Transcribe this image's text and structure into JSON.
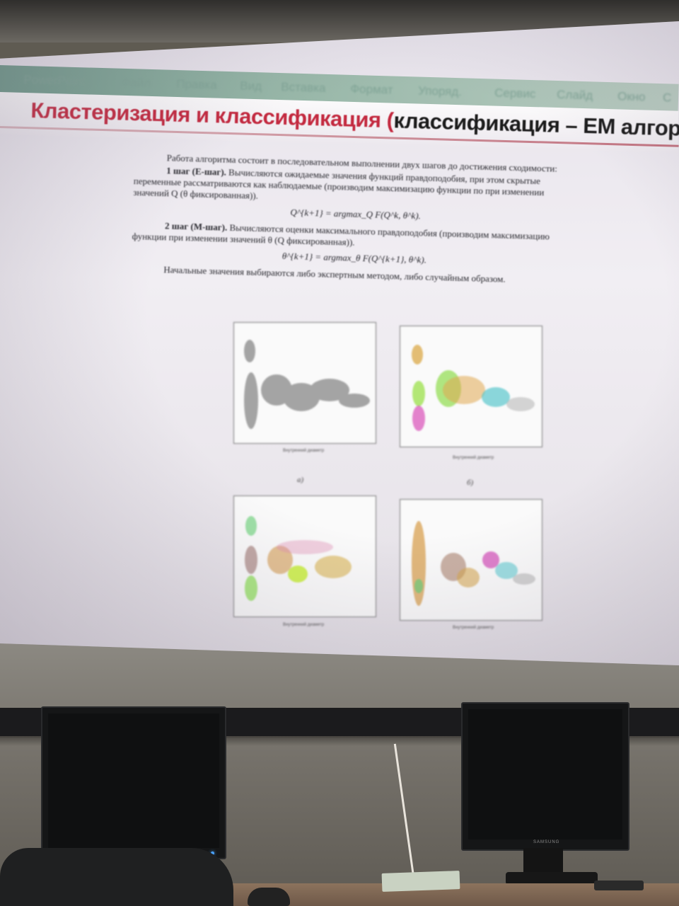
{
  "menubar": {
    "items": [
      "PowerPoint",
      "Файл",
      "Правка",
      "Вид",
      "Вставка",
      "Формат",
      "Упоряд.",
      "Сервис",
      "Слайд",
      "Окно",
      "С"
    ]
  },
  "slide": {
    "title_colored": "Кластеризация и классификация (",
    "title_rest": "классификация – ЕМ алгоритм",
    "paragraphs": {
      "intro": "Работа алгоритма состоит в последовательном выполнении двух шагов до достижения сходимости:",
      "step1_label": "1 шаг (Е-шаг).",
      "step1_text": " Вычисляются ожидаемые значения функций правдоподобия, при этом скрытые переменные рассматриваются как наблюдаемые (производим максимизацию функции по при изменении значений Q (θ фиксированная)).",
      "formula1": "Q^{k+1} = argmax_Q F(Q^k, θ^k).",
      "step2_label": "2 шаг (М-шаг).",
      "step2_text": " Вычисляются оценки максимального правдоподобия (производим максимизацию функции при изменении значений θ (Q фиксированная)).",
      "formula2": "θ^{k+1} = argmax_θ F(Q^{k+1}, θ^k).",
      "outro": "Начальные значения выбираются либо экспертным методом, либо случайным образом."
    },
    "figure_captions": [
      "а)",
      "б)"
    ],
    "xlabel": "Внутренний диаметр"
  },
  "monitors": {
    "right_brand": "SAMSUNG"
  },
  "colors": {
    "title_red": "#c3293f",
    "menubar_green": "#8fb1a2"
  }
}
